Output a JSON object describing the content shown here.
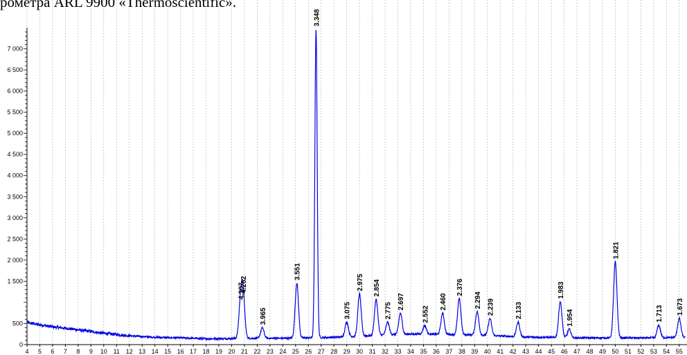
{
  "caption": "рометра ARL 9900 «Thermoscientific».",
  "chart_data": {
    "type": "line",
    "title": "",
    "xlabel": "",
    "ylabel": "",
    "xlim": [
      4,
      55.5
    ],
    "ylim": [
      0,
      7500
    ],
    "x_ticks": [
      4,
      5,
      6,
      7,
      8,
      9,
      10,
      11,
      12,
      13,
      14,
      15,
      16,
      17,
      18,
      19,
      20,
      21,
      22,
      23,
      24,
      25,
      26,
      27,
      28,
      29,
      30,
      31,
      32,
      33,
      34,
      35,
      36,
      37,
      38,
      39,
      40,
      41,
      42,
      43,
      44,
      45,
      46,
      47,
      48,
      49,
      50,
      51,
      52,
      53,
      54,
      55
    ],
    "y_ticks": [
      {
        "value": 0,
        "label": "0"
      },
      {
        "value": 500,
        "label": "500"
      },
      {
        "value": 1500,
        "label": "1 500"
      },
      {
        "value": 2000,
        "label": "2 000"
      },
      {
        "value": 2500,
        "label": "2 500"
      },
      {
        "value": 3000,
        "label": "3 000"
      },
      {
        "value": 3500,
        "label": "3 500"
      },
      {
        "value": 4000,
        "label": "4 000"
      },
      {
        "value": 4500,
        "label": "4 500"
      },
      {
        "value": 5000,
        "label": "5 000"
      },
      {
        "value": 5500,
        "label": "5 500"
      },
      {
        "value": 6000,
        "label": "6 000"
      },
      {
        "value": 6500,
        "label": "6 500"
      },
      {
        "value": 7000,
        "label": "7 000"
      }
    ],
    "grid": {
      "vertical": true,
      "horizontal": false
    },
    "line_color": "#0000e0",
    "background_points": [
      [
        4.0,
        520
      ],
      [
        5.0,
        470
      ],
      [
        6.0,
        420
      ],
      [
        7.0,
        390
      ],
      [
        8.0,
        350
      ],
      [
        9.0,
        310
      ],
      [
        10.0,
        270
      ],
      [
        11.0,
        240
      ],
      [
        12.0,
        210
      ],
      [
        13.0,
        190
      ],
      [
        14.0,
        175
      ],
      [
        15.0,
        165
      ],
      [
        16.0,
        160
      ],
      [
        17.0,
        150
      ],
      [
        18.0,
        140
      ],
      [
        19.0,
        140
      ],
      [
        20.0,
        145
      ],
      [
        21.0,
        150
      ],
      [
        22.0,
        150
      ],
      [
        23.0,
        150
      ],
      [
        24.0,
        150
      ],
      [
        25.0,
        155
      ],
      [
        26.0,
        160
      ],
      [
        27.0,
        165
      ],
      [
        28.0,
        175
      ],
      [
        29.0,
        185
      ],
      [
        30.0,
        200
      ],
      [
        31.0,
        215
      ],
      [
        32.0,
        230
      ],
      [
        33.0,
        245
      ],
      [
        34.0,
        250
      ],
      [
        35.0,
        250
      ],
      [
        36.0,
        245
      ],
      [
        37.0,
        240
      ],
      [
        38.0,
        235
      ],
      [
        39.0,
        230
      ],
      [
        40.0,
        220
      ],
      [
        41.0,
        205
      ],
      [
        42.0,
        190
      ],
      [
        43.0,
        180
      ],
      [
        44.0,
        175
      ],
      [
        45.0,
        170
      ],
      [
        46.0,
        165
      ],
      [
        47.0,
        160
      ],
      [
        48.0,
        160
      ],
      [
        49.0,
        160
      ],
      [
        50.0,
        160
      ],
      [
        51.0,
        160
      ],
      [
        52.0,
        160
      ],
      [
        53.0,
        160
      ],
      [
        54.0,
        165
      ],
      [
        55.0,
        170
      ],
      [
        55.5,
        170
      ]
    ],
    "peaks": [
      {
        "x": 20.7,
        "height": 850,
        "label": "4.307"
      },
      {
        "x": 20.9,
        "height": 1000,
        "label": "4.262"
      },
      {
        "x": 22.4,
        "height": 250,
        "label": "3.965"
      },
      {
        "x": 25.1,
        "height": 1300,
        "label": "3.551"
      },
      {
        "x": 26.6,
        "height": 7300,
        "label": "3.348"
      },
      {
        "x": 29.0,
        "height": 350,
        "label": "3.075"
      },
      {
        "x": 30.0,
        "height": 1000,
        "label": "2.975"
      },
      {
        "x": 31.3,
        "height": 850,
        "label": "2.854"
      },
      {
        "x": 32.2,
        "height": 300,
        "label": "2.775"
      },
      {
        "x": 33.2,
        "height": 500,
        "label": "2.697"
      },
      {
        "x": 35.1,
        "height": 200,
        "label": "2.552"
      },
      {
        "x": 36.5,
        "height": 500,
        "label": "2.460"
      },
      {
        "x": 37.8,
        "height": 850,
        "label": "2.376"
      },
      {
        "x": 39.2,
        "height": 550,
        "label": "2.294"
      },
      {
        "x": 40.2,
        "height": 400,
        "label": "2.239"
      },
      {
        "x": 42.4,
        "height": 350,
        "label": "2.133"
      },
      {
        "x": 45.7,
        "height": 850,
        "label": "1.983"
      },
      {
        "x": 46.4,
        "height": 200,
        "label": "1.954"
      },
      {
        "x": 50.0,
        "height": 1800,
        "label": "1.821"
      },
      {
        "x": 53.4,
        "height": 300,
        "label": "1.713"
      },
      {
        "x": 55.0,
        "height": 450,
        "label": "1.673"
      }
    ]
  }
}
